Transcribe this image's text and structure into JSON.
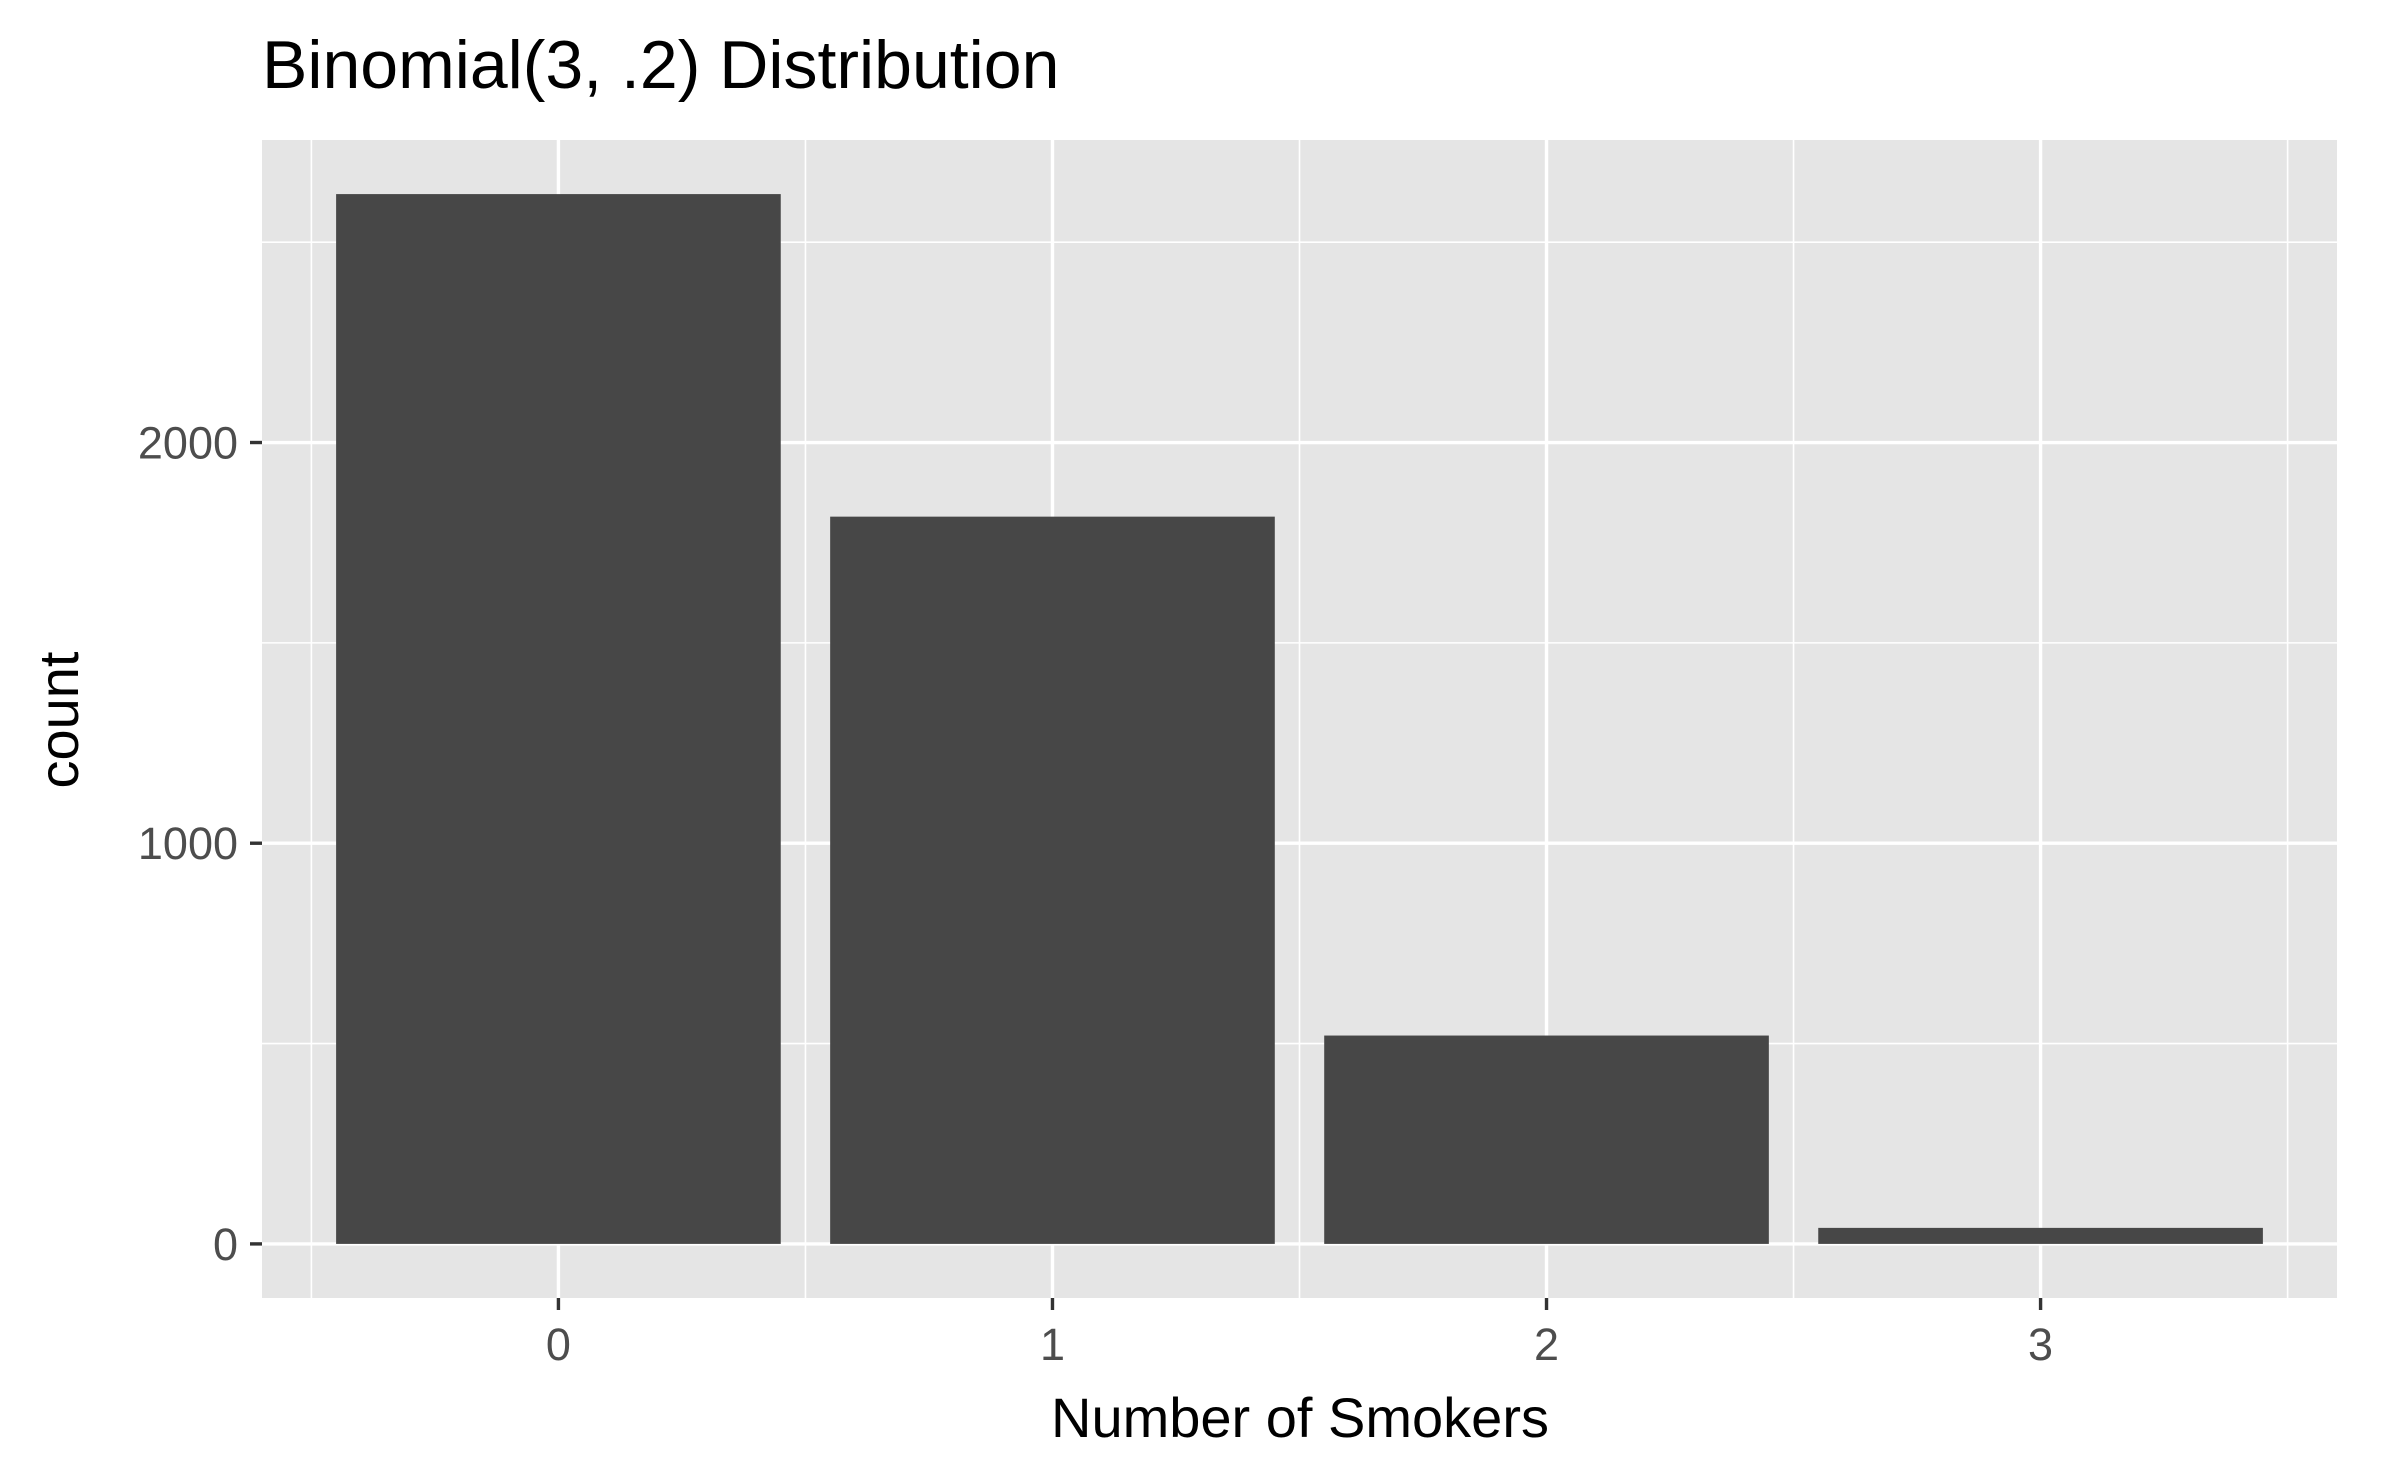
{
  "chart_data": {
    "type": "bar",
    "title": "Binomial(3, .2) Distribution",
    "xlabel": "Number of Smokers",
    "ylabel": "count",
    "categories": [
      "0",
      "1",
      "2",
      "3"
    ],
    "values": [
      2620,
      1815,
      520,
      40
    ],
    "ylim": [
      -135,
      2755
    ],
    "y_ticks": [
      0,
      1000,
      2000
    ],
    "y_tick_labels": [
      "0",
      "1000",
      "2000"
    ],
    "grid": true,
    "legend": "none",
    "colors": {
      "bar": "#474747",
      "panel": "#e5e5e5",
      "grid": "#ffffff",
      "tick_text": "#4d4d4d",
      "tick_mark": "#333333"
    }
  }
}
